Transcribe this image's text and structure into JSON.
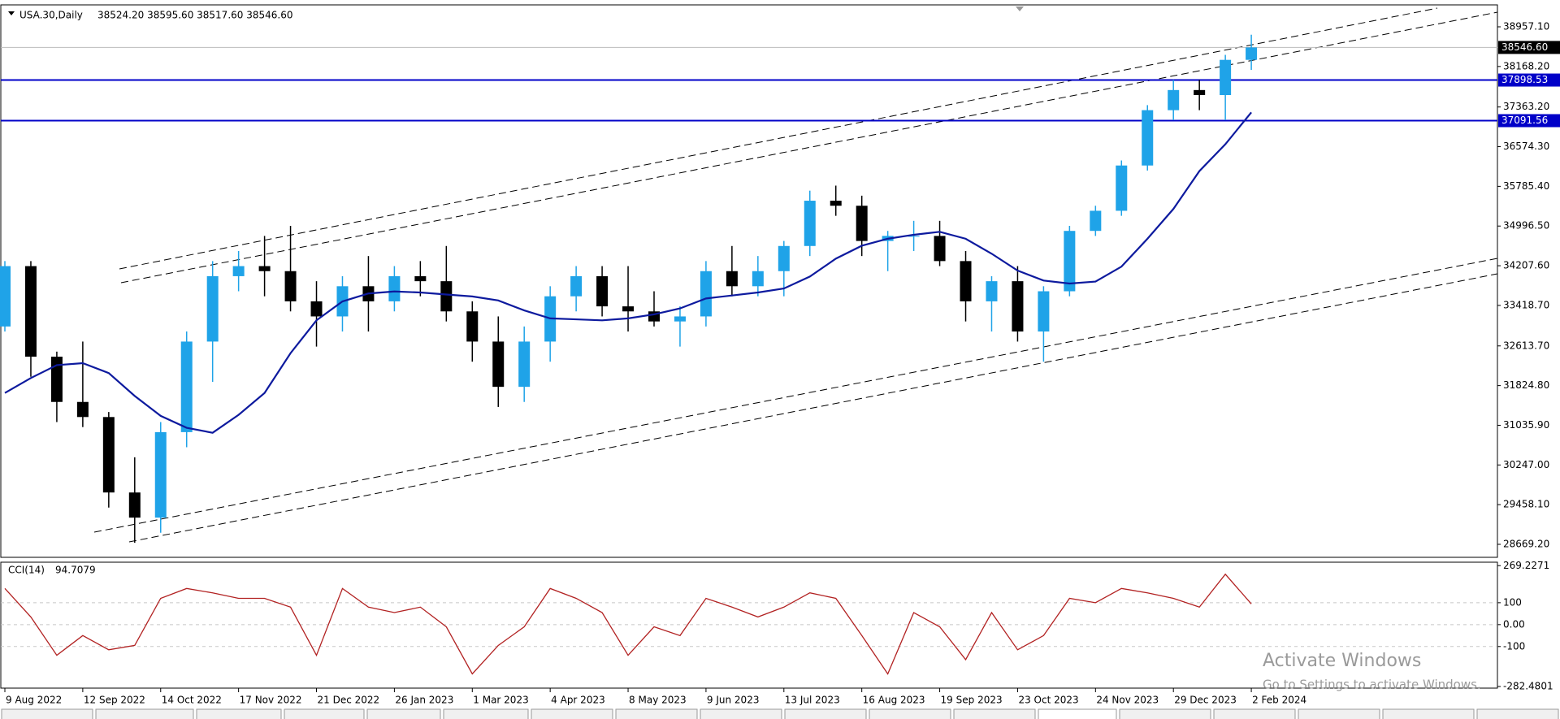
{
  "chart_data": {
    "type": "candlestick",
    "title": "USA.30,Daily",
    "ohlc_label": "38524.20 38595.60 38517.60 38546.60",
    "categories": [
      "9 Aug 2022",
      null,
      null,
      "12 Sep 2022",
      null,
      null,
      "14 Oct 2022",
      null,
      null,
      "17 Nov 2022",
      null,
      null,
      "21 Dec 2022",
      null,
      null,
      "26 Jan 2023",
      null,
      null,
      "1 Mar 2023",
      null,
      null,
      "4 Apr 2023",
      null,
      null,
      "8 May 2023",
      null,
      null,
      "9 Jun 2023",
      null,
      null,
      "13 Jul 2023",
      null,
      null,
      "16 Aug 2023",
      null,
      null,
      "19 Sep 2023",
      null,
      null,
      "23 Oct 2023",
      null,
      null,
      "24 Nov 2023",
      null,
      null,
      "29 Dec 2023",
      null,
      null,
      "2 Feb 2024"
    ],
    "open": [
      33000,
      34200,
      32400,
      31500,
      31200,
      29700,
      29200,
      30900,
      32700,
      34000,
      34200,
      34100,
      33500,
      33200,
      33800,
      33500,
      34000,
      33900,
      33300,
      32700,
      31800,
      32700,
      33600,
      34000,
      33400,
      33300,
      33100,
      33200,
      34100,
      33800,
      34100,
      34600,
      35500,
      35400,
      34700,
      34800,
      34800,
      34300,
      33500,
      33900,
      32900,
      33700,
      34900,
      35300,
      36200,
      37300,
      37700,
      37600,
      38300
    ],
    "high": [
      34300,
      34300,
      32500,
      32700,
      31300,
      30400,
      31100,
      32900,
      34300,
      34500,
      34800,
      35000,
      33900,
      34000,
      34400,
      34200,
      34300,
      34600,
      33500,
      33200,
      33000,
      33800,
      34200,
      34200,
      34200,
      33700,
      33400,
      34300,
      34600,
      34400,
      34700,
      35700,
      35800,
      35600,
      34900,
      35100,
      35100,
      34500,
      34000,
      34200,
      33800,
      35000,
      35400,
      36300,
      37400,
      37900,
      37900,
      38400,
      38800
    ],
    "low": [
      32900,
      32000,
      31100,
      31000,
      29400,
      28700,
      28900,
      30600,
      31900,
      33700,
      33600,
      33300,
      32600,
      32900,
      32900,
      33300,
      33600,
      33100,
      32300,
      31400,
      31500,
      32300,
      33300,
      33200,
      32900,
      33000,
      32600,
      33000,
      33600,
      33600,
      33600,
      34400,
      35200,
      34400,
      34100,
      34500,
      34200,
      33100,
      32900,
      32700,
      32300,
      33600,
      34800,
      35200,
      36100,
      37100,
      37300,
      37100,
      38100
    ],
    "close": [
      34200,
      32400,
      31500,
      31200,
      29700,
      29200,
      30900,
      32700,
      34000,
      34200,
      34100,
      33500,
      33200,
      33800,
      33500,
      34000,
      33900,
      33300,
      32700,
      31800,
      32700,
      33600,
      34000,
      33400,
      33300,
      33100,
      33200,
      34100,
      33800,
      34100,
      34600,
      35500,
      35400,
      34700,
      34800,
      34800,
      34300,
      33500,
      33900,
      32900,
      33700,
      34900,
      35300,
      36200,
      37300,
      37700,
      37600,
      38300,
      38546.6
    ],
    "up_color": "#1fa3e8",
    "down_color": "#000000",
    "ma": {
      "color": "#0d1a9e",
      "values": [
        31678,
        31975,
        32232,
        32271,
        32074,
        31619,
        31223,
        30986,
        30887,
        31243,
        31678,
        32469,
        33122,
        33498,
        33656,
        33696,
        33676,
        33636,
        33597,
        33517,
        33320,
        33161,
        33142,
        33122,
        33161,
        33241,
        33359,
        33557,
        33616,
        33676,
        33755,
        33992,
        34348,
        34605,
        34744,
        34823,
        34882,
        34744,
        34447,
        34111,
        33913,
        33854,
        33893,
        34190,
        34744,
        35337,
        36089,
        36623,
        37256
      ]
    },
    "ylim": [
      28411,
      39393
    ],
    "yticks": [
      {
        "value": 38957.1,
        "label": "38957.10"
      },
      {
        "value": 38168.2,
        "label": "38168.20"
      },
      {
        "value": 37363.2,
        "label": "37363.20"
      },
      {
        "value": 36574.3,
        "label": "36574.30"
      },
      {
        "value": 35785.4,
        "label": "35785.40"
      },
      {
        "value": 34996.5,
        "label": "34996.50"
      },
      {
        "value": 34207.6,
        "label": "34207.60"
      },
      {
        "value": 33418.7,
        "label": "33418.70"
      },
      {
        "value": 32613.7,
        "label": "32613.70"
      },
      {
        "value": 31824.8,
        "label": "31824.80"
      },
      {
        "value": 31035.9,
        "label": "31035.90"
      },
      {
        "value": 30247.0,
        "label": "30247.00"
      },
      {
        "value": 29458.1,
        "label": "29458.10"
      },
      {
        "value": 28669.2,
        "label": "28669.20"
      }
    ],
    "last_price": {
      "value": 38546.6,
      "label": "38546.60"
    },
    "levels": [
      37898.53,
      37091.56
    ],
    "level_color": "#0000c8",
    "cci": {
      "name": "CCI(14)",
      "color": "#b22222",
      "values": [
        165,
        35,
        -140,
        -50,
        -115,
        -95,
        120,
        165,
        145,
        120,
        120,
        80,
        -140,
        165,
        80,
        55,
        80,
        -10,
        -225,
        -95,
        -10,
        165,
        120,
        55,
        -140,
        -10,
        -50,
        120,
        80,
        35,
        80,
        145,
        120,
        -50,
        -225,
        55,
        -10,
        -160,
        55,
        -115,
        -50,
        120,
        100,
        165,
        145,
        120,
        80,
        230,
        94.7079
      ],
      "ylim": [
        -290,
        285
      ],
      "yticks": [
        269.2271,
        100,
        {
          "value": 0,
          "label": "0.00"
        },
        -100,
        -282.4801
      ]
    },
    "watermark": {
      "title": "Activate Windows",
      "subtitle": "Go to Settings to activate Windows."
    }
  }
}
